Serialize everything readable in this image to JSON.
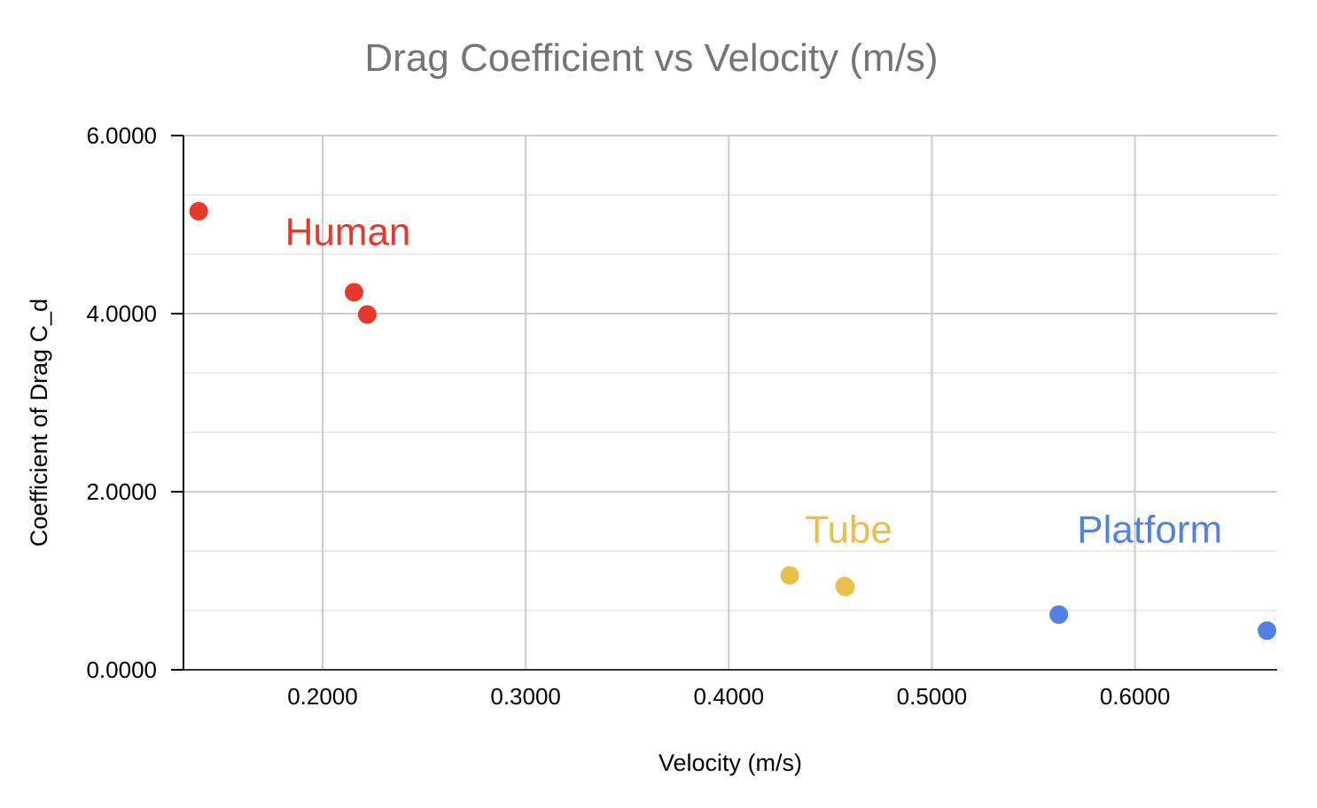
{
  "chart_data": {
    "type": "scatter",
    "title": "Drag Coefficient  vs Velocity (m/s)",
    "xlabel": "Velocity (m/s)",
    "ylabel": "Coefficient of Drag C_d",
    "xlim": [
      0.1315,
      0.67
    ],
    "ylim": [
      0,
      6
    ],
    "x_ticks": [
      "0.2000",
      "0.3000",
      "0.4000",
      "0.5000",
      "0.6000"
    ],
    "x_tick_values": [
      0.2,
      0.3,
      0.4,
      0.5,
      0.6
    ],
    "y_ticks": [
      "0.0000",
      "2.0000",
      "4.0000",
      "6.0000"
    ],
    "y_tick_values": [
      0,
      2,
      4,
      6
    ],
    "y_minor_gridlines": [
      0.6667,
      1.3333,
      2.6667,
      3.3333,
      4.6667,
      5.3333
    ],
    "grid": true,
    "legend": "none",
    "series": [
      {
        "name": "Human",
        "color": "#e8382b",
        "points": [
          {
            "x": 0.139,
            "y": 5.15
          },
          {
            "x": 0.2155,
            "y": 4.24
          },
          {
            "x": 0.222,
            "y": 3.99
          }
        ]
      },
      {
        "name": "Tube",
        "color": "#e8c14d",
        "points": [
          {
            "x": 0.43,
            "y": 1.06
          },
          {
            "x": 0.457,
            "y": 0.94
          },
          {
            "x": 0.4575,
            "y": 0.93
          }
        ]
      },
      {
        "name": "Platform",
        "color": "#5283e4",
        "points": [
          {
            "x": 0.5625,
            "y": 0.62
          },
          {
            "x": 0.665,
            "y": 0.44
          }
        ]
      }
    ],
    "annotations": [
      {
        "text": "Human",
        "color": "#e8382b",
        "x": 0.1815,
        "y": 4.77
      },
      {
        "text": "Tube",
        "color": "#e8c14d",
        "x": 0.4375,
        "y": 1.43
      },
      {
        "text": "Platform",
        "color": "#5283e4",
        "x": 0.5715,
        "y": 1.43
      }
    ]
  }
}
